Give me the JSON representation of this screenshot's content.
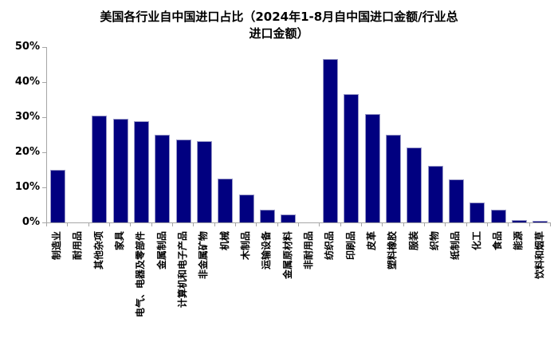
{
  "title": {
    "line1": "美国各行业自中国进口占比（2024年1-8月自中国进口金额/行业总",
    "line2": "进口金额）"
  },
  "colors": {
    "bar_fill": "#010080",
    "bar_border": "#9a9ac8",
    "axis": "#a6a6a6",
    "text": "#000000",
    "background": "#ffffff"
  },
  "chart_data": {
    "type": "bar",
    "title": "美国各行业自中国进口占比（2024年1-8月自中国进口金额/行业总进口金额）",
    "unit": "%",
    "categories": [
      "制造业",
      "耐用品",
      "其他杂项",
      "家具",
      "电气、电器及零部件",
      "金属制品",
      "计算机和电子产品",
      "非金属矿物",
      "机械",
      "木制品",
      "运输设备",
      "金属原材料",
      "非耐用品",
      "纺织品",
      "印刷品",
      "皮革",
      "塑料橡胶",
      "服装",
      "织物",
      "纸制品",
      "化工",
      "食品",
      "能源",
      "饮料和烟草"
    ],
    "values": [
      15,
      null,
      30.5,
      29.5,
      28.8,
      25,
      23.6,
      23.2,
      12.5,
      8,
      3.7,
      2.3,
      null,
      46.5,
      36.5,
      31,
      24.9,
      21.4,
      16.2,
      12.2,
      5.6,
      3.6,
      0.7,
      0.4
    ],
    "xlabel": "",
    "ylabel": "",
    "ylim": [
      0,
      50
    ],
    "y_ticks": [
      "0%",
      "10%",
      "20%",
      "30%",
      "40%",
      "50%"
    ],
    "grid": false,
    "legend": false
  }
}
